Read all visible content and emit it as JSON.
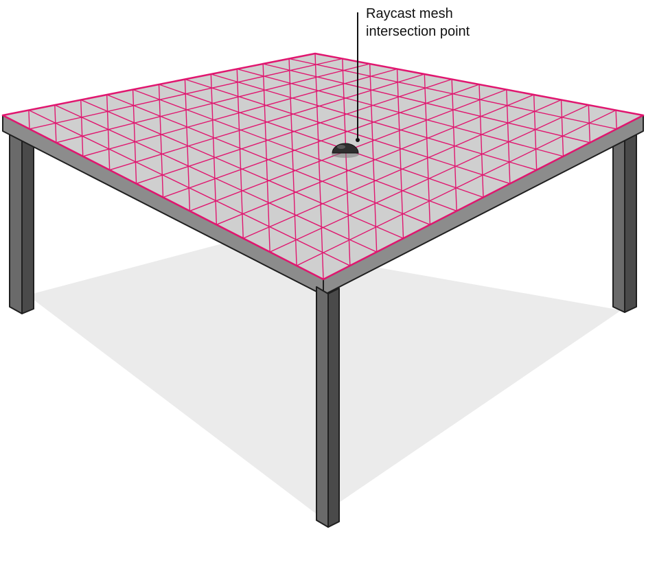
{
  "callout": {
    "line1": "Raycast mesh",
    "line2": "intersection point"
  },
  "mesh": {
    "divisions": 12
  },
  "colors": {
    "background": "#ffffff",
    "shadow": "#ebebeb",
    "tabletop": "#cfcfcf",
    "mesh_line": "#e0166f",
    "table_edge": "#8c8c8c",
    "leg_face": "#6a6a6a",
    "leg_side": "#4a4a4a",
    "outline": "#1f1f1f",
    "marker": "#2e2e2e"
  }
}
